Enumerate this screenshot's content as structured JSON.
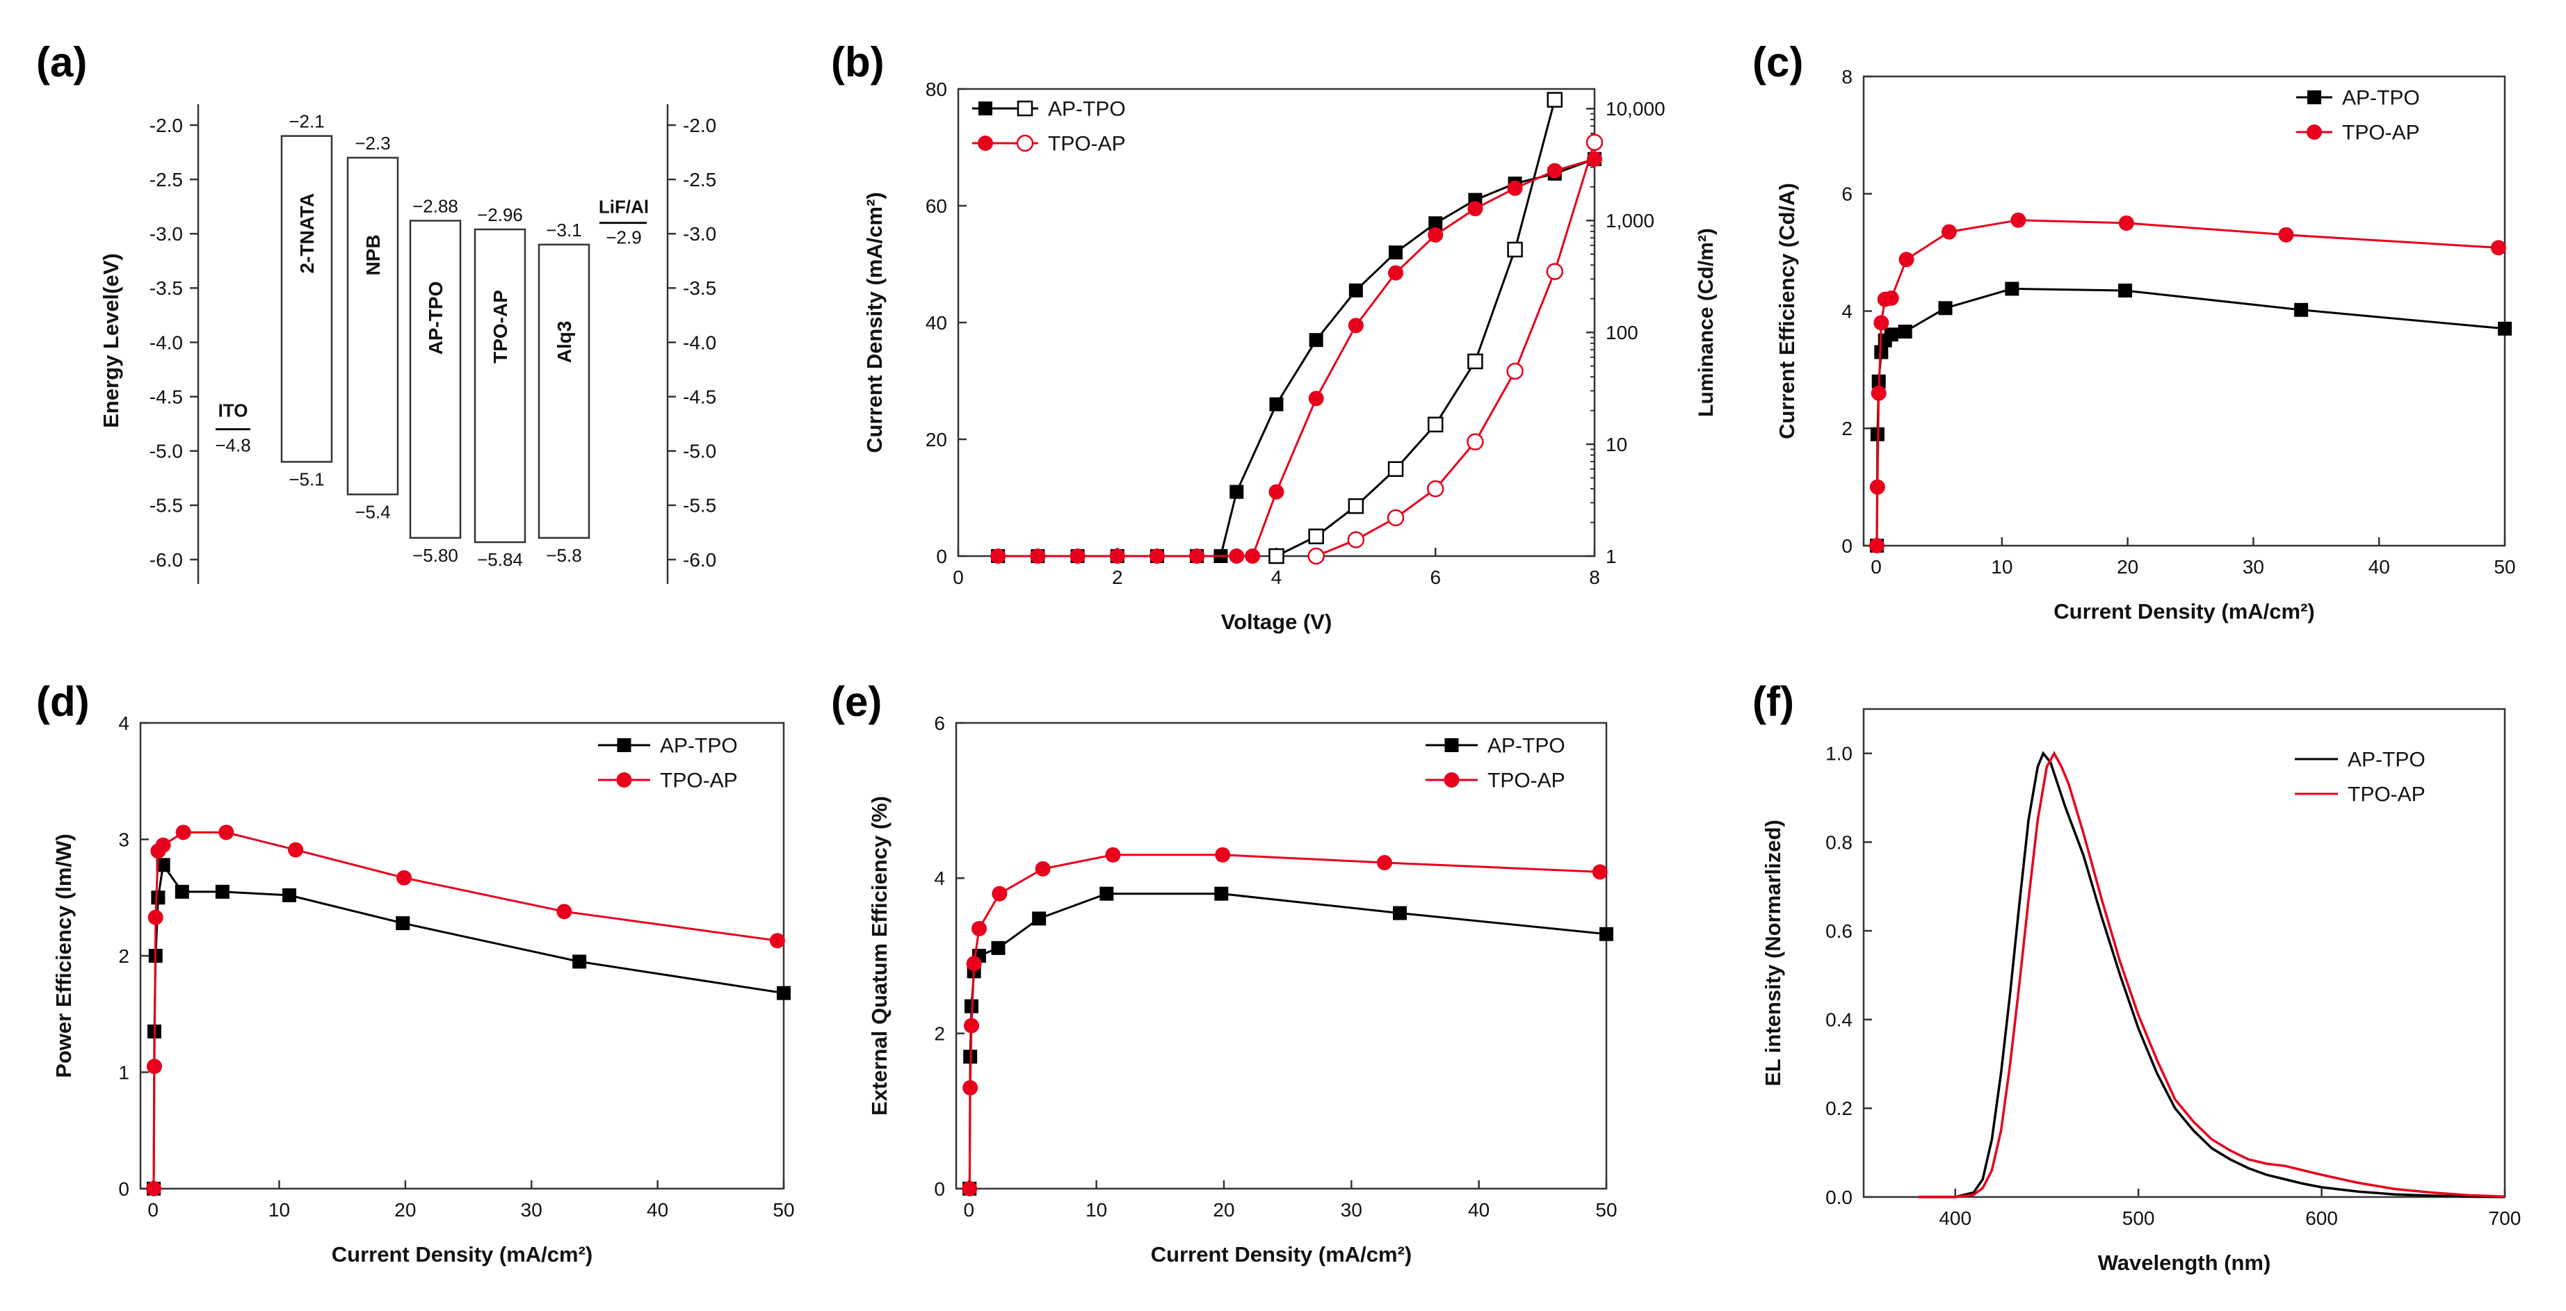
{
  "colors": {
    "black_series": "#000000",
    "red_series": "#e8001c",
    "axis": "#333333"
  },
  "panel_labels": [
    "(a)",
    "(b)",
    "(c)",
    "(d)",
    "(e)",
    "(f)"
  ],
  "chart_data": [
    {
      "panel": "(a)",
      "type": "diagram",
      "ylabel": "Energy Level(eV)",
      "ylim": [
        -6.2,
        -1.8
      ],
      "yticks": [
        "-2.0",
        "-2.5",
        "-3.0",
        "-3.5",
        "-4.0",
        "-4.5",
        "-5.0",
        "-5.5",
        "-6.0"
      ],
      "ito": {
        "label": "ITO",
        "value_label": "−4.8",
        "level": -4.8
      },
      "cathode": {
        "label": "LiF/Al",
        "value_label": "−2.9",
        "level": -2.9
      },
      "layers": [
        {
          "name": "2-TNATA",
          "lumo": -2.1,
          "homo": -5.1,
          "lumo_label": "−2.1",
          "homo_label": "−5.1"
        },
        {
          "name": "NPB",
          "lumo": -2.3,
          "homo": -5.4,
          "lumo_label": "−2.3",
          "homo_label": "−5.4"
        },
        {
          "name": "AP-TPO",
          "lumo": -2.88,
          "homo": -5.8,
          "lumo_label": "−2.88",
          "homo_label": "−5.80"
        },
        {
          "name": "TPO-AP",
          "lumo": -2.96,
          "homo": -5.84,
          "lumo_label": "−2.96",
          "homo_label": "−5.84"
        },
        {
          "name": "Alq3",
          "lumo": -3.1,
          "homo": -5.8,
          "lumo_label": "−3.1",
          "homo_label": "−5.8"
        }
      ]
    },
    {
      "panel": "(b)",
      "type": "line",
      "xlabel": "Voltage (V)",
      "ylabel": "Current Density (mA/cm²)",
      "y2label": "Luminance (Cd/m²)",
      "xlim": [
        0,
        8
      ],
      "ylim": [
        0,
        80
      ],
      "y2lim": [
        1,
        15000
      ],
      "y2_scale": "log",
      "xticks": [
        0,
        2,
        4,
        6,
        8
      ],
      "yticks": [
        0,
        20,
        40,
        60,
        80
      ],
      "y2ticks": [
        {
          "value": 1,
          "label": "1"
        },
        {
          "value": 10,
          "label": "10"
        },
        {
          "value": 100,
          "label": "100"
        },
        {
          "value": 1000,
          "label": "1,000"
        },
        {
          "value": 10000,
          "label": "10,000"
        }
      ],
      "legend": [
        "AP-TPO",
        "TPO-AP"
      ],
      "legend_position": "top-left",
      "series": [
        {
          "name": "AP-TPO",
          "color": "black",
          "marker": "filled-square",
          "axis": "left",
          "x": [
            0.5,
            1.0,
            1.5,
            2.0,
            2.5,
            3.0,
            3.3,
            3.5,
            4.0,
            4.5,
            5.0,
            5.5,
            6.0,
            6.5,
            7.0,
            7.5,
            8.0
          ],
          "y": [
            0,
            0,
            0,
            0,
            0,
            0,
            0,
            11,
            26,
            37,
            45.5,
            52,
            57,
            61,
            63.8,
            65.5,
            68
          ]
        },
        {
          "name": "AP-TPO",
          "color": "black",
          "marker": "open-square",
          "axis": "right",
          "x": [
            4.0,
            4.5,
            5.0,
            5.5,
            6.0,
            6.5,
            7.0,
            7.5
          ],
          "y": [
            1,
            1.5,
            2.8,
            6,
            15,
            55,
            550,
            12000
          ]
        },
        {
          "name": "TPO-AP",
          "color": "red",
          "marker": "filled-circle",
          "axis": "left",
          "x": [
            0.5,
            1.0,
            1.5,
            2.0,
            2.5,
            3.0,
            3.5,
            3.7,
            4.0,
            4.5,
            5.0,
            5.5,
            6.0,
            6.5,
            7.0,
            7.5,
            8.0
          ],
          "y": [
            0,
            0,
            0,
            0,
            0,
            0,
            0,
            0,
            11,
            27,
            39.5,
            48.5,
            55,
            59.5,
            63,
            66,
            68
          ]
        },
        {
          "name": "TPO-AP",
          "color": "red",
          "marker": "open-circle",
          "axis": "right",
          "x": [
            4.5,
            5.0,
            5.5,
            6.0,
            6.5,
            7.0,
            7.5,
            8.0
          ],
          "y": [
            1,
            1.4,
            2.2,
            4,
            10.5,
            45,
            350,
            5000
          ]
        }
      ]
    },
    {
      "panel": "(c)",
      "type": "line",
      "xlabel": "Current Density (mA/cm²)",
      "ylabel": "Current Efficiency (Cd/A)",
      "xlim": [
        -1,
        50
      ],
      "ylim": [
        0,
        8
      ],
      "xticks": [
        0,
        10,
        20,
        30,
        40,
        50
      ],
      "yticks": [
        0,
        2,
        4,
        6,
        8
      ],
      "legend": [
        "AP-TPO",
        "TPO-AP"
      ],
      "legend_position": "top-right",
      "series": [
        {
          "name": "AP-TPO",
          "color": "black",
          "marker": "filled-square",
          "x": [
            0.05,
            0.1,
            0.2,
            0.4,
            0.7,
            1.2,
            2.3,
            5.5,
            10.8,
            19.8,
            33.8,
            50
          ],
          "y": [
            0,
            1.9,
            2.8,
            3.3,
            3.5,
            3.6,
            3.65,
            4.05,
            4.38,
            4.35,
            4.02,
            3.7
          ]
        },
        {
          "name": "TPO-AP",
          "color": "red",
          "marker": "filled-circle",
          "x": [
            0.05,
            0.1,
            0.2,
            0.4,
            0.7,
            1.2,
            2.4,
            5.8,
            11.3,
            19.9,
            32.6,
            49.5
          ],
          "y": [
            0,
            1.0,
            2.6,
            3.8,
            4.2,
            4.22,
            4.88,
            5.35,
            5.55,
            5.5,
            5.3,
            5.08
          ]
        }
      ]
    },
    {
      "panel": "(d)",
      "type": "line",
      "xlabel": "Current Density (mA/cm²)",
      "ylabel": "Power Efficiency (lm/W)",
      "xlim": [
        -1,
        50
      ],
      "ylim": [
        0,
        4
      ],
      "xticks": [
        0,
        10,
        20,
        30,
        40,
        50
      ],
      "yticks": [
        0,
        1,
        2,
        3,
        4
      ],
      "legend": [
        "AP-TPO",
        "TPO-AP"
      ],
      "legend_position": "top-right",
      "series": [
        {
          "name": "AP-TPO",
          "color": "black",
          "marker": "filled-square",
          "x": [
            0.05,
            0.1,
            0.2,
            0.4,
            0.8,
            2.3,
            5.5,
            10.8,
            19.8,
            33.8,
            50
          ],
          "y": [
            0,
            1.35,
            2.0,
            2.5,
            2.78,
            2.55,
            2.55,
            2.52,
            2.28,
            1.95,
            1.68
          ]
        },
        {
          "name": "TPO-AP",
          "color": "red",
          "marker": "filled-circle",
          "x": [
            0.05,
            0.1,
            0.2,
            0.4,
            0.8,
            2.4,
            5.8,
            11.3,
            19.9,
            32.6,
            49.5
          ],
          "y": [
            0,
            1.05,
            2.33,
            2.9,
            2.95,
            3.06,
            3.06,
            2.91,
            2.67,
            2.38,
            2.13
          ]
        }
      ]
    },
    {
      "panel": "(e)",
      "type": "line",
      "xlabel": "Current Density (mA/cm²)",
      "ylabel": "External Quatum Efficiency (%)",
      "xlim": [
        -1,
        50
      ],
      "ylim": [
        0,
        6
      ],
      "xticks": [
        0,
        10,
        20,
        30,
        40,
        50
      ],
      "yticks": [
        0,
        2,
        4,
        6
      ],
      "legend": [
        "AP-TPO",
        "TPO-AP"
      ],
      "legend_position": "top-right",
      "series": [
        {
          "name": "AP-TPO",
          "color": "black",
          "marker": "filled-square",
          "x": [
            0.05,
            0.1,
            0.2,
            0.4,
            0.8,
            2.3,
            5.5,
            10.8,
            19.8,
            33.8,
            50
          ],
          "y": [
            0,
            1.7,
            2.35,
            2.8,
            3.0,
            3.1,
            3.48,
            3.8,
            3.8,
            3.55,
            3.28
          ]
        },
        {
          "name": "TPO-AP",
          "color": "red",
          "marker": "filled-circle",
          "x": [
            0.05,
            0.1,
            0.2,
            0.4,
            0.8,
            2.4,
            5.8,
            11.3,
            19.9,
            32.6,
            49.5
          ],
          "y": [
            0,
            1.3,
            2.1,
            2.9,
            3.35,
            3.8,
            4.12,
            4.3,
            4.3,
            4.2,
            4.08
          ]
        }
      ]
    },
    {
      "panel": "(f)",
      "type": "line",
      "xlabel": "Wavelength (nm)",
      "ylabel": "EL intensity (Normarlized)",
      "xlim": [
        350,
        700
      ],
      "ylim": [
        0,
        1.1
      ],
      "xticks": [
        400,
        500,
        600,
        700
      ],
      "yticks": [
        "0.0",
        "0.2",
        "0.4",
        "0.6",
        "0.8",
        "1.0"
      ],
      "legend": [
        "AP-TPO",
        "TPO-AP"
      ],
      "legend_position": "top-right",
      "series": [
        {
          "name": "AP-TPO",
          "color": "black",
          "x": [
            380,
            400,
            410,
            415,
            420,
            425,
            430,
            435,
            440,
            445,
            448,
            452,
            456,
            460,
            470,
            480,
            490,
            500,
            510,
            520,
            530,
            540,
            550,
            560,
            570,
            580,
            590,
            600,
            620,
            640,
            660,
            680,
            700
          ],
          "y": [
            0,
            0,
            0.01,
            0.04,
            0.13,
            0.28,
            0.46,
            0.66,
            0.85,
            0.97,
            1.0,
            0.98,
            0.93,
            0.88,
            0.77,
            0.63,
            0.5,
            0.38,
            0.28,
            0.2,
            0.15,
            0.11,
            0.085,
            0.065,
            0.05,
            0.04,
            0.03,
            0.022,
            0.012,
            0.006,
            0.003,
            0.001,
            0
          ]
        },
        {
          "name": "TPO-AP",
          "color": "red",
          "x": [
            380,
            400,
            410,
            415,
            420,
            425,
            430,
            435,
            440,
            445,
            450,
            454,
            458,
            462,
            470,
            480,
            490,
            500,
            510,
            520,
            530,
            540,
            550,
            560,
            570,
            580,
            590,
            600,
            620,
            640,
            660,
            680,
            700
          ],
          "y": [
            0,
            0,
            0.005,
            0.02,
            0.06,
            0.15,
            0.3,
            0.48,
            0.67,
            0.85,
            0.97,
            1.0,
            0.97,
            0.93,
            0.82,
            0.67,
            0.53,
            0.41,
            0.31,
            0.22,
            0.17,
            0.13,
            0.105,
            0.085,
            0.075,
            0.07,
            0.06,
            0.05,
            0.032,
            0.018,
            0.01,
            0.004,
            0.001
          ]
        }
      ]
    }
  ]
}
